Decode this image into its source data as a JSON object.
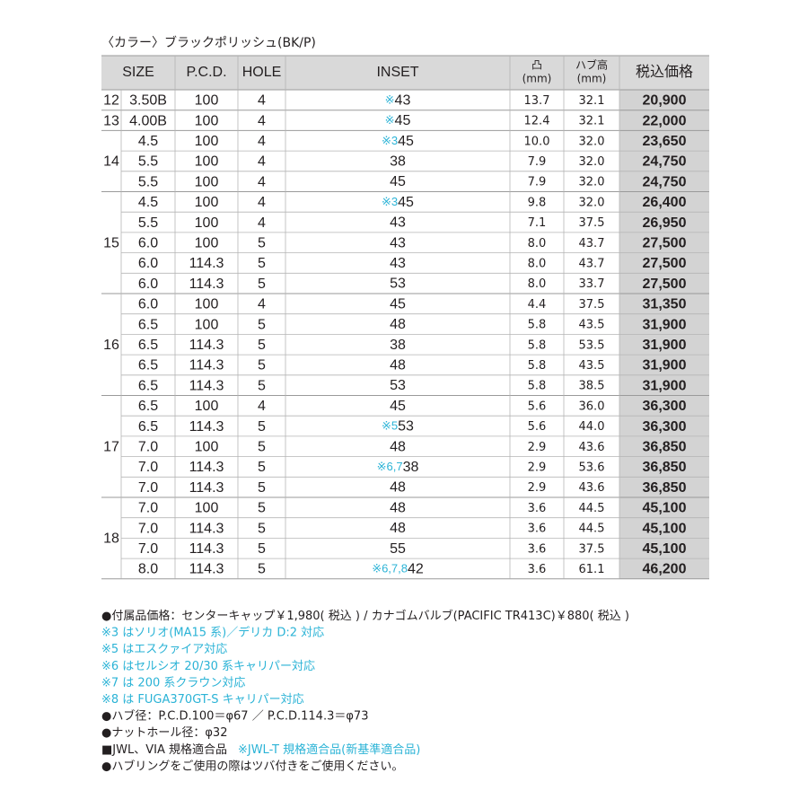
{
  "caption": "〈カラー〉ブラックポリッシュ(BK/P)",
  "header": {
    "size": "SIZE",
    "pcd": "P.C.D.",
    "hole": "HOLE",
    "inset": "INSET",
    "offset": [
      "凸",
      "(mm)"
    ],
    "hub": [
      "ハブ高",
      "(mm)"
    ],
    "price": "税込価格"
  },
  "groups": [
    {
      "diameter": "12",
      "rows": [
        {
          "size": "3.50B",
          "pcd": "100",
          "hole": "4",
          "note": "※",
          "inset": "43",
          "offset": "13.7",
          "hub": "32.1",
          "price": "20,900"
        }
      ]
    },
    {
      "diameter": "13",
      "rows": [
        {
          "size": "4.00B",
          "pcd": "100",
          "hole": "4",
          "note": "※",
          "inset": "45",
          "offset": "12.4",
          "hub": "32.1",
          "price": "22,000"
        }
      ]
    },
    {
      "diameter": "14",
      "rows": [
        {
          "size": "4.5",
          "pcd": "100",
          "hole": "4",
          "note": "※3",
          "inset": "45",
          "offset": "10.0",
          "hub": "32.0",
          "price": "23,650"
        },
        {
          "size": "5.5",
          "pcd": "100",
          "hole": "4",
          "inset": "38",
          "offset": "7.9",
          "hub": "32.0",
          "price": "24,750"
        },
        {
          "size": "5.5",
          "pcd": "100",
          "hole": "4",
          "inset": "45",
          "offset": "7.9",
          "hub": "32.0",
          "price": "24,750"
        }
      ]
    },
    {
      "diameter": "15",
      "rows": [
        {
          "size": "4.5",
          "pcd": "100",
          "hole": "4",
          "note": "※3",
          "inset": "45",
          "offset": "9.8",
          "hub": "32.0",
          "price": "26,400"
        },
        {
          "size": "5.5",
          "pcd": "100",
          "hole": "4",
          "inset": "43",
          "offset": "7.1",
          "hub": "37.5",
          "price": "26,950"
        },
        {
          "size": "6.0",
          "pcd": "100",
          "hole": "5",
          "inset": "43",
          "offset": "8.0",
          "hub": "43.7",
          "price": "27,500"
        },
        {
          "size": "6.0",
          "pcd": "114.3",
          "hole": "5",
          "inset": "43",
          "offset": "8.0",
          "hub": "43.7",
          "price": "27,500"
        },
        {
          "size": "6.0",
          "pcd": "114.3",
          "hole": "5",
          "inset": "53",
          "offset": "8.0",
          "hub": "33.7",
          "price": "27,500"
        }
      ]
    },
    {
      "diameter": "16",
      "rows": [
        {
          "size": "6.0",
          "pcd": "100",
          "hole": "4",
          "inset": "45",
          "offset": "4.4",
          "hub": "37.5",
          "price": "31,350"
        },
        {
          "size": "6.5",
          "pcd": "100",
          "hole": "5",
          "inset": "48",
          "offset": "5.8",
          "hub": "43.5",
          "price": "31,900"
        },
        {
          "size": "6.5",
          "pcd": "114.3",
          "hole": "5",
          "inset": "38",
          "offset": "5.8",
          "hub": "53.5",
          "price": "31,900"
        },
        {
          "size": "6.5",
          "pcd": "114.3",
          "hole": "5",
          "inset": "48",
          "offset": "5.8",
          "hub": "43.5",
          "price": "31,900"
        },
        {
          "size": "6.5",
          "pcd": "114.3",
          "hole": "5",
          "inset": "53",
          "offset": "5.8",
          "hub": "38.5",
          "price": "31,900"
        }
      ]
    },
    {
      "diameter": "17",
      "rows": [
        {
          "size": "6.5",
          "pcd": "100",
          "hole": "4",
          "inset": "45",
          "offset": "5.6",
          "hub": "36.0",
          "price": "36,300"
        },
        {
          "size": "6.5",
          "pcd": "114.3",
          "hole": "5",
          "note": "※5",
          "inset": "53",
          "offset": "5.6",
          "hub": "44.0",
          "price": "36,300"
        },
        {
          "size": "7.0",
          "pcd": "100",
          "hole": "5",
          "inset": "48",
          "offset": "2.9",
          "hub": "43.6",
          "price": "36,850"
        },
        {
          "size": "7.0",
          "pcd": "114.3",
          "hole": "5",
          "note": "※6,7",
          "inset": "38",
          "offset": "2.9",
          "hub": "53.6",
          "price": "36,850"
        },
        {
          "size": "7.0",
          "pcd": "114.3",
          "hole": "5",
          "inset": "48",
          "offset": "2.9",
          "hub": "43.6",
          "price": "36,850"
        }
      ]
    },
    {
      "diameter": "18",
      "rows": [
        {
          "size": "7.0",
          "pcd": "100",
          "hole": "5",
          "inset": "48",
          "offset": "3.6",
          "hub": "44.5",
          "price": "45,100"
        },
        {
          "size": "7.0",
          "pcd": "114.3",
          "hole": "5",
          "inset": "48",
          "offset": "3.6",
          "hub": "44.5",
          "price": "45,100"
        },
        {
          "size": "7.0",
          "pcd": "114.3",
          "hole": "5",
          "inset": "55",
          "offset": "3.6",
          "hub": "37.5",
          "price": "45,100"
        },
        {
          "size": "8.0",
          "pcd": "114.3",
          "hole": "5",
          "note": "※6,7,8",
          "inset": "42",
          "offset": "3.6",
          "hub": "61.1",
          "price": "46,200"
        }
      ]
    }
  ],
  "notes": [
    {
      "text": "●付属品価格：センターキャップ￥1,980( 税込 ) / カナゴムバルブ(PACIFIC TR413C)￥880( 税込 )"
    },
    {
      "text": "※3 はソリオ(MA15 系)／デリカ D:2 対応",
      "highlight": true
    },
    {
      "text": "※5 はエスクァイア対応",
      "highlight": true
    },
    {
      "text": "※6 はセルシオ 20/30 系キャリパー対応",
      "highlight": true
    },
    {
      "text": "※7 は 200 系クラウン対応",
      "highlight": true
    },
    {
      "text": "※8 は FUGA370GT-S キャリパー対応",
      "highlight": true
    },
    {
      "text": "●ハブ径：P.C.D.100＝φ67 ／ P.C.D.114.3＝φ73"
    },
    {
      "text": "●ナットホール径：φ32"
    },
    {
      "text": "■JWL、VIA 規格適合品",
      "extra": "※JWL-T 規格適合品(新基準適合品)"
    },
    {
      "text": "●ハブリングをご使用の際はツバ付きをご使用ください。"
    }
  ]
}
